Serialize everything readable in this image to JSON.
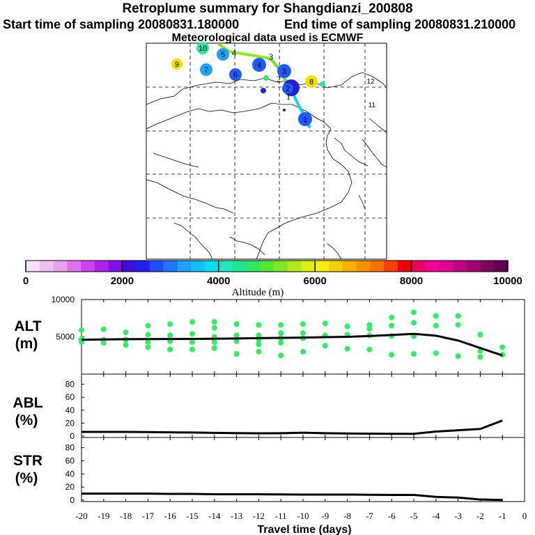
{
  "header": {
    "title": "Retroplume summary for Shangdianzi_200808",
    "start_time": "Start time of sampling 20080831.180000",
    "end_time": "End time of sampling 20080831.210000",
    "met_data": "Meteorological data used is ECMWF"
  },
  "map": {
    "plume_day_labels": [
      {
        "label": "1",
        "color": "#1e5aff"
      },
      {
        "label": "2",
        "color": "#1e5aff"
      },
      {
        "label": "3",
        "color": "#1e5aff"
      },
      {
        "label": "4",
        "color": "#1e5aff"
      },
      {
        "label": "5",
        "color": "#1ea0ff"
      },
      {
        "label": "6",
        "color": "#1e5aff"
      },
      {
        "label": "7",
        "color": "#1ea0ff"
      },
      {
        "label": "8",
        "color": "#f0e000"
      },
      {
        "label": "9",
        "color": "#f0e000"
      },
      {
        "label": "10",
        "color": "#30e8a0"
      },
      {
        "label": "11",
        "color": "#ffffff"
      },
      {
        "label": "12",
        "color": "#ffffff"
      }
    ],
    "track_labels": [
      "1",
      "2",
      "3",
      "4"
    ]
  },
  "colorbar": {
    "tick_labels": [
      "0",
      "2000",
      "4000",
      "6000",
      "8000",
      "10000"
    ],
    "title": "Altitude (m)",
    "colors": [
      "#f8e0f8",
      "#f0c0f0",
      "#e8a0f0",
      "#e070f0",
      "#d040f0",
      "#b020f0",
      "#8010e8",
      "#4010d8",
      "#2020f0",
      "#1e50ff",
      "#1e78ff",
      "#1ea0ff",
      "#10c0ff",
      "#00e0f0",
      "#20e8c0",
      "#20e890",
      "#30e860",
      "#50e830",
      "#80e820",
      "#b0e820",
      "#e0f000",
      "#f8f000",
      "#f8d000",
      "#f8b000",
      "#f89000",
      "#f87000",
      "#f84000",
      "#f00000",
      "#f00060",
      "#f000a0",
      "#e00090",
      "#c00080",
      "#a00070",
      "#800060",
      "#600050"
    ]
  },
  "chart_data": [
    {
      "type": "scatter+line",
      "ylabel_line1": "ALT",
      "ylabel_line2": "(m)",
      "ylim": [
        0,
        10000
      ],
      "yticks": [
        "10000",
        "5000"
      ],
      "x": [
        -20,
        -19,
        -18,
        -17,
        -16,
        -15,
        -14,
        -13,
        -12,
        -11,
        -10,
        -9,
        -8,
        -7,
        -6,
        -5,
        -4,
        -3,
        -2,
        -1
      ],
      "mean_altitude": [
        4600,
        4650,
        4680,
        4700,
        4710,
        4720,
        4740,
        4780,
        4820,
        4860,
        4900,
        4950,
        5000,
        5100,
        5250,
        5400,
        5150,
        4500,
        3500,
        2500
      ],
      "points": [
        [
          -20,
          5900
        ],
        [
          -20,
          4700
        ],
        [
          -20,
          4300
        ],
        [
          -19,
          6000
        ],
        [
          -19,
          4600
        ],
        [
          -19,
          4200
        ],
        [
          -18,
          5600
        ],
        [
          -18,
          4600
        ],
        [
          -18,
          3900
        ],
        [
          -17,
          6500
        ],
        [
          -17,
          5300
        ],
        [
          -17,
          4300
        ],
        [
          -17,
          3600
        ],
        [
          -16,
          6700
        ],
        [
          -16,
          5200
        ],
        [
          -16,
          4400
        ],
        [
          -16,
          3300
        ],
        [
          -15,
          7000
        ],
        [
          -15,
          5400
        ],
        [
          -15,
          4300
        ],
        [
          -15,
          3300
        ],
        [
          -14,
          7000
        ],
        [
          -14,
          6200
        ],
        [
          -14,
          5000
        ],
        [
          -14,
          4300
        ],
        [
          -14,
          3500
        ],
        [
          -13,
          6700
        ],
        [
          -13,
          5200
        ],
        [
          -13,
          4400
        ],
        [
          -13,
          2700
        ],
        [
          -12,
          6600
        ],
        [
          -12,
          5200
        ],
        [
          -12,
          4600
        ],
        [
          -12,
          4000
        ],
        [
          -12,
          3000
        ],
        [
          -11,
          6600
        ],
        [
          -11,
          5500
        ],
        [
          -11,
          4800
        ],
        [
          -11,
          4200
        ],
        [
          -11,
          2500
        ],
        [
          -10,
          6700
        ],
        [
          -10,
          5500
        ],
        [
          -10,
          4800
        ],
        [
          -10,
          3000
        ],
        [
          -9,
          6800
        ],
        [
          -9,
          5200
        ],
        [
          -9,
          3800
        ],
        [
          -8,
          6400
        ],
        [
          -8,
          5300
        ],
        [
          -8,
          3400
        ],
        [
          -7,
          6600
        ],
        [
          -7,
          6100
        ],
        [
          -7,
          5200
        ],
        [
          -7,
          3300
        ],
        [
          -6,
          7600
        ],
        [
          -6,
          6500
        ],
        [
          -6,
          5100
        ],
        [
          -6,
          2600
        ],
        [
          -5,
          8300
        ],
        [
          -5,
          6900
        ],
        [
          -5,
          5100
        ],
        [
          -5,
          2700
        ],
        [
          -4,
          7800
        ],
        [
          -4,
          6500
        ],
        [
          -4,
          2800
        ],
        [
          -3,
          7800
        ],
        [
          -3,
          6600
        ],
        [
          -3,
          2400
        ],
        [
          -2,
          5300
        ],
        [
          -2,
          3100
        ],
        [
          -2,
          2300
        ],
        [
          -1,
          3600
        ],
        [
          -1,
          2600
        ]
      ]
    },
    {
      "type": "line",
      "ylabel_line1": "ABL",
      "ylabel_line2": "(%)",
      "ylim": [
        0,
        100
      ],
      "yticks": [
        "80",
        "60",
        "40",
        "20",
        "0"
      ],
      "x": [
        -20,
        -19,
        -18,
        -17,
        -16,
        -15,
        -14,
        -13,
        -12,
        -11,
        -10,
        -9,
        -8,
        -7,
        -6,
        -5,
        -4,
        -3,
        -2,
        -1
      ],
      "values": [
        6.5,
        6.5,
        6.5,
        6.2,
        5.8,
        5.5,
        5,
        4.6,
        4.3,
        4.5,
        5.2,
        4.5,
        4,
        3.8,
        3.5,
        3.5,
        7,
        9,
        11,
        24
      ]
    },
    {
      "type": "line",
      "ylabel_line1": "STR",
      "ylabel_line2": "(%)",
      "ylim": [
        0,
        100
      ],
      "yticks": [
        "80",
        "60",
        "40",
        "20",
        "0"
      ],
      "x": [
        -20,
        -19,
        -18,
        -17,
        -16,
        -15,
        -14,
        -13,
        -12,
        -11,
        -10,
        -9,
        -8,
        -7,
        -6,
        -5,
        -4,
        -3,
        -2,
        -1
      ],
      "values": [
        10,
        10,
        10,
        10,
        9.5,
        9.5,
        9,
        9,
        9,
        8.8,
        8.5,
        8.5,
        8.5,
        8.3,
        8,
        8,
        5,
        4,
        1,
        0.3
      ]
    }
  ],
  "xaxis": {
    "tick_labels": [
      "-20",
      "-19",
      "-18",
      "-17",
      "-16",
      "-15",
      "-14",
      "-13",
      "-12",
      "-11",
      "-10",
      "-9",
      "-8",
      "-7",
      "-6",
      "-5",
      "-4",
      "-3",
      "-2",
      "-1",
      "0"
    ],
    "title": "Travel time (days)"
  }
}
